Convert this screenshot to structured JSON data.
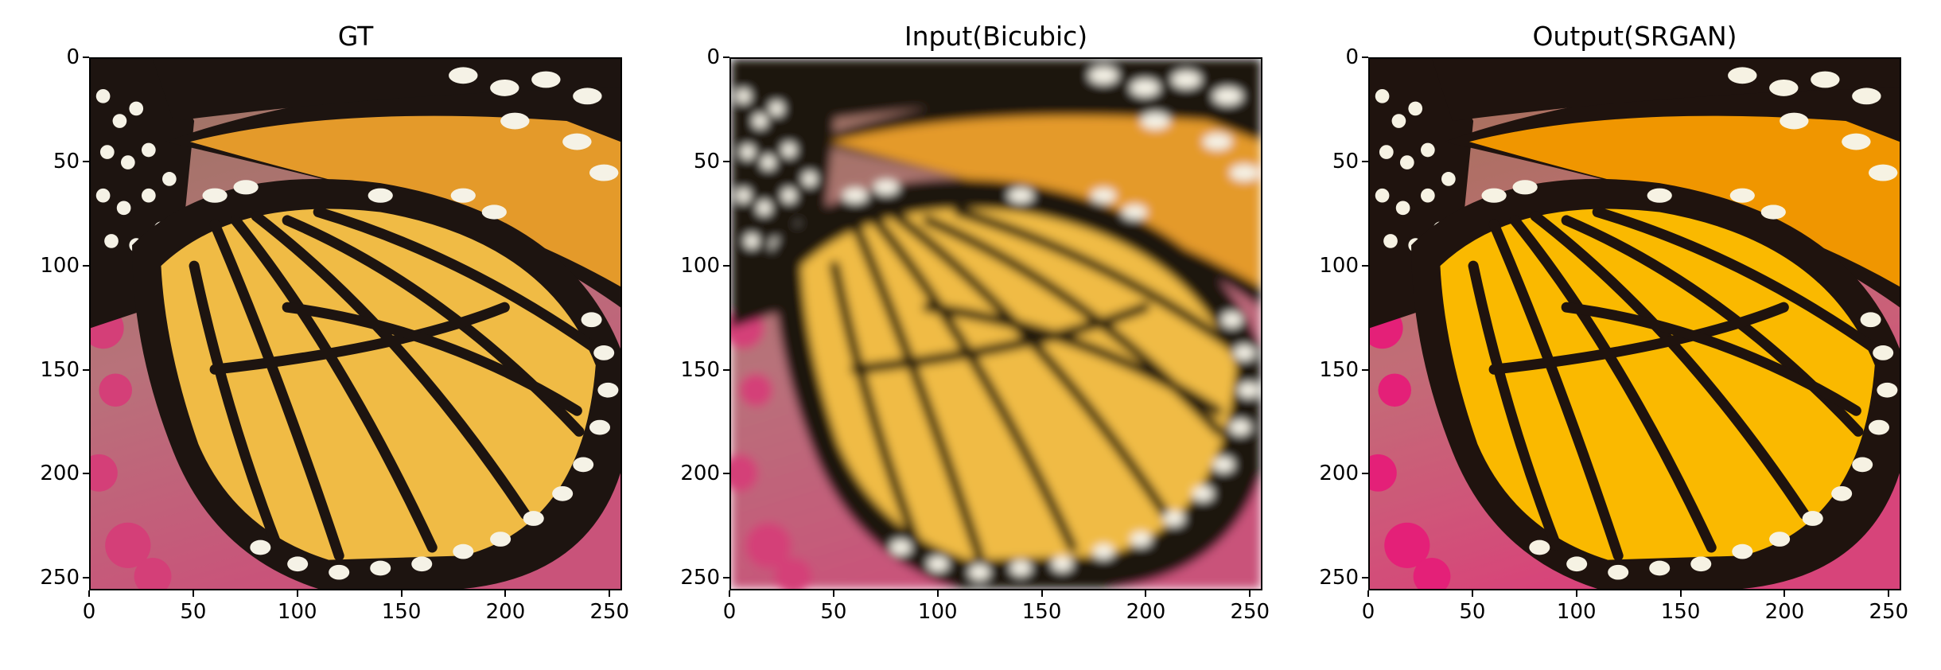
{
  "figure": {
    "axis_max": 256,
    "ticks": [
      0,
      50,
      100,
      150,
      200,
      250
    ],
    "panels": [
      {
        "id": "gt",
        "title": "GT",
        "style": "sharp"
      },
      {
        "id": "bicubic",
        "title": "Input(Bicubic)",
        "style": "blurred"
      },
      {
        "id": "srgan",
        "title": "Output(SRGAN)",
        "style": "saturated"
      }
    ],
    "colors": {
      "wing_orange": "#e49a2a",
      "wing_yellow": "#f0bb45",
      "vein_black": "#1d1410",
      "spot_white": "#f5f2e6",
      "background_pink": "#c9537a",
      "background_brown": "#9a7460"
    }
  }
}
